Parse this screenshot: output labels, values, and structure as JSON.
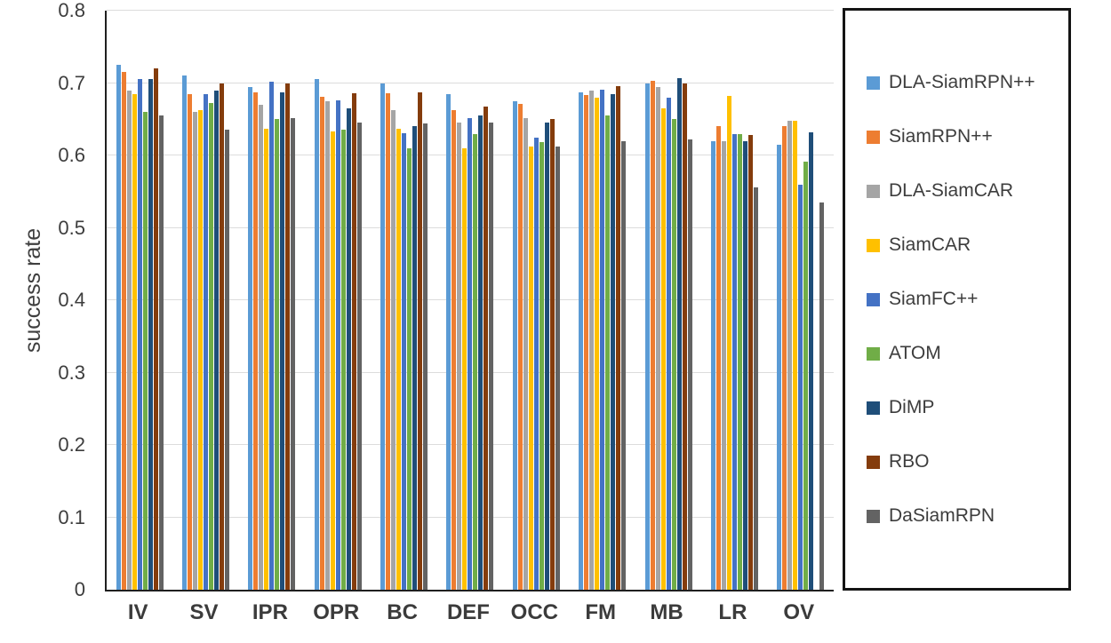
{
  "chart_data": {
    "type": "bar",
    "title": "",
    "xlabel": "",
    "ylabel": "success rate",
    "ylim": [
      0,
      0.8
    ],
    "grid": true,
    "legend_position": "right",
    "yticks": [
      {
        "value": 0,
        "label": "0"
      },
      {
        "value": 0.1,
        "label": "0.1"
      },
      {
        "value": 0.2,
        "label": "0.2"
      },
      {
        "value": 0.3,
        "label": "0.3"
      },
      {
        "value": 0.4,
        "label": "0.4"
      },
      {
        "value": 0.5,
        "label": "0.5"
      },
      {
        "value": 0.6,
        "label": "0.6"
      },
      {
        "value": 0.7,
        "label": "0.7"
      },
      {
        "value": 0.8,
        "label": "0.8"
      }
    ],
    "categories": [
      "IV",
      "SV",
      "IPR",
      "OPR",
      "BC",
      "DEF",
      "OCC",
      "FM",
      "MB",
      "LR",
      "OV"
    ],
    "series": [
      {
        "name": "DLA-SiamRPN++",
        "color": "#5B9BD5",
        "values": [
          0.725,
          0.71,
          0.695,
          0.705,
          0.7,
          0.685,
          0.675,
          0.687,
          0.7,
          0.62,
          0.615
        ]
      },
      {
        "name": "SiamRPN++",
        "color": "#ED7D31",
        "values": [
          0.715,
          0.685,
          0.687,
          0.681,
          0.686,
          0.663,
          0.671,
          0.684,
          0.703,
          0.64,
          0.641
        ]
      },
      {
        "name": "DLA-SiamCAR",
        "color": "#A5A5A5",
        "values": [
          0.69,
          0.66,
          0.67,
          0.675,
          0.662,
          0.645,
          0.651,
          0.69,
          0.695,
          0.62,
          0.648
        ]
      },
      {
        "name": "SiamCAR",
        "color": "#FFC000",
        "values": [
          0.685,
          0.662,
          0.637,
          0.633,
          0.637,
          0.61,
          0.612,
          0.68,
          0.665,
          0.682,
          0.648
        ]
      },
      {
        "name": "SiamFC++",
        "color": "#4472C4",
        "values": [
          0.705,
          0.685,
          0.702,
          0.676,
          0.631,
          0.651,
          0.625,
          0.691,
          0.68,
          0.63,
          0.56
        ]
      },
      {
        "name": "ATOM",
        "color": "#70AD47",
        "values": [
          0.66,
          0.672,
          0.65,
          0.636,
          0.61,
          0.63,
          0.618,
          0.655,
          0.65,
          0.63,
          0.592
        ]
      },
      {
        "name": "DiMP",
        "color": "#1F4E79",
        "values": [
          0.705,
          0.69,
          0.687,
          0.665,
          0.64,
          0.655,
          0.645,
          0.685,
          0.707,
          0.62,
          0.632
        ]
      },
      {
        "name": "RBO",
        "color": "#843C0C",
        "values": [
          0.72,
          0.7,
          0.7,
          0.686,
          0.687,
          0.668,
          0.65,
          0.696,
          0.7,
          0.628,
          null
        ]
      },
      {
        "name": "DaSiamRPN",
        "color": "#636363",
        "values": [
          0.655,
          0.635,
          0.651,
          0.645,
          0.644,
          0.645,
          0.612,
          0.62,
          0.622,
          0.556,
          0.535
        ]
      }
    ]
  }
}
